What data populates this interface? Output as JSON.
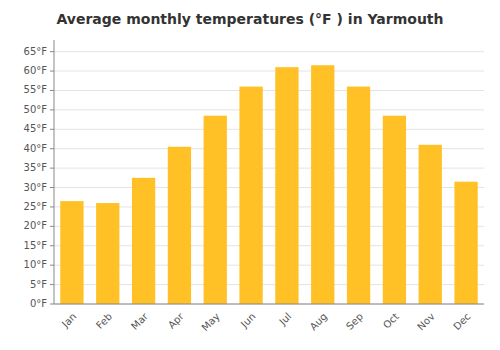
{
  "chart_data": {
    "type": "bar",
    "title": "Average monthly temperatures (°F ) in Yarmouth",
    "categories": [
      "Jan",
      "Feb",
      "Mar",
      "Apr",
      "May",
      "Jun",
      "Jul",
      "Aug",
      "Sep",
      "Oct",
      "Nov",
      "Dec"
    ],
    "values": [
      26.5,
      26.0,
      32.5,
      40.5,
      48.5,
      56.0,
      61.0,
      61.5,
      56.0,
      48.5,
      41.0,
      31.5
    ],
    "color": "#FFC125",
    "ylim": [
      0,
      68
    ],
    "yticks": [
      {
        "value": 0,
        "label": "0°F"
      },
      {
        "value": 5,
        "label": "5°F"
      },
      {
        "value": 10,
        "label": "10°F"
      },
      {
        "value": 15,
        "label": "15°F"
      },
      {
        "value": 20,
        "label": "20°F"
      },
      {
        "value": 25,
        "label": "25°F"
      },
      {
        "value": 30,
        "label": "30°F"
      },
      {
        "value": 35,
        "label": "35°F"
      },
      {
        "value": 40,
        "label": "40°F"
      },
      {
        "value": 45,
        "label": "45°F"
      },
      {
        "value": 50,
        "label": "50°F"
      },
      {
        "value": 55,
        "label": "55°F"
      },
      {
        "value": 60,
        "label": "60°F"
      },
      {
        "value": 65,
        "label": "65°F"
      }
    ],
    "grid": true
  }
}
